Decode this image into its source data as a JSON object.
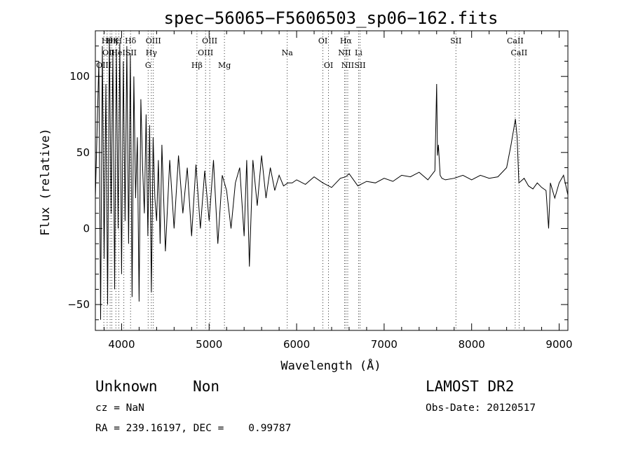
{
  "chart_data": {
    "type": "line",
    "title": "spec−56065−F5606503_sp06−162.fits",
    "xlabel": "Wavelength (Å)",
    "ylabel": "Flux (relative)",
    "xlim": [
      3700,
      9100
    ],
    "ylim": [
      -67,
      130
    ],
    "x_ticks": [
      4000,
      5000,
      6000,
      7000,
      8000,
      9000
    ],
    "x_tick_labels": [
      "4000",
      "5000",
      "6000",
      "7000",
      "8000",
      "9000"
    ],
    "y_ticks": [
      -50,
      0,
      50,
      100
    ],
    "y_tick_labels": [
      "−50",
      "0",
      "50",
      "100"
    ],
    "x_minor_step": 200,
    "y_minor_step": 10,
    "grid": false,
    "series": [
      {
        "color": "#000000",
        "x": [
          3700,
          3740,
          3760,
          3780,
          3800,
          3820,
          3840,
          3860,
          3880,
          3900,
          3920,
          3940,
          3960,
          3980,
          4000,
          4020,
          4040,
          4060,
          4080,
          4100,
          4120,
          4140,
          4160,
          4180,
          4200,
          4220,
          4240,
          4260,
          4280,
          4300,
          4320,
          4340,
          4360,
          4380,
          4400,
          4420,
          4440,
          4460,
          4480,
          4500,
          4550,
          4600,
          4650,
          4700,
          4750,
          4800,
          4850,
          4900,
          4950,
          5000,
          5050,
          5100,
          5150,
          5200,
          5250,
          5300,
          5350,
          5400,
          5430,
          5460,
          5500,
          5550,
          5600,
          5650,
          5700,
          5750,
          5800,
          5850,
          5900,
          5950,
          6000,
          6100,
          6200,
          6300,
          6400,
          6500,
          6560,
          6600,
          6700,
          6800,
          6900,
          7000,
          7100,
          7200,
          7300,
          7400,
          7500,
          7580,
          7600,
          7610,
          7620,
          7640,
          7660,
          7700,
          7800,
          7900,
          8000,
          8100,
          8200,
          8300,
          8400,
          8450,
          8480,
          8500,
          8520,
          8540,
          8560,
          8600,
          8650,
          8700,
          8750,
          8800,
          8850,
          8880,
          8900,
          8950,
          9000,
          9050,
          9100
        ],
        "values": [
          20,
          110,
          -60,
          120,
          -20,
          95,
          -50,
          125,
          10,
          115,
          -40,
          118,
          0,
          122,
          -30,
          110,
          5,
          120,
          -10,
          115,
          -45,
          100,
          20,
          60,
          -48,
          85,
          40,
          10,
          75,
          -5,
          68,
          -42,
          60,
          20,
          5,
          45,
          -10,
          55,
          20,
          -15,
          45,
          0,
          48,
          10,
          40,
          -5,
          42,
          0,
          38,
          5,
          45,
          -10,
          35,
          25,
          0,
          30,
          40,
          -5,
          45,
          -25,
          45,
          15,
          48,
          20,
          40,
          25,
          35,
          28,
          30,
          30,
          32,
          29,
          34,
          30,
          27,
          33,
          34,
          36,
          28,
          31,
          30,
          33,
          31,
          35,
          34,
          37,
          32,
          38,
          95,
          48,
          55,
          35,
          33,
          32,
          33,
          35,
          32,
          35,
          33,
          34,
          40,
          55,
          65,
          72,
          60,
          30,
          31,
          33,
          28,
          26,
          30,
          27,
          25,
          0,
          30,
          20,
          30,
          35,
          22
        ]
      }
    ],
    "lines": [
      {
        "x": 3797,
        "row": 2,
        "label": "OIII"
      },
      {
        "x": 3835,
        "row": 0,
        "label": "Hθ"
      },
      {
        "x": 3869,
        "row": 1,
        "label": "OIII"
      },
      {
        "x": 3889,
        "row": 0,
        "label": "Hη"
      },
      {
        "x": 3934,
        "row": 0,
        "label": "K"
      },
      {
        "x": 3968,
        "row": 0,
        "label": "H"
      },
      {
        "x": 4026,
        "row": 1,
        "label": "HeISII"
      },
      {
        "x": 4102,
        "row": 0,
        "label": "Hδ"
      },
      {
        "x": 4303,
        "row": 2,
        "label": "G"
      },
      {
        "x": 4340,
        "row": 1,
        "label": "Hγ"
      },
      {
        "x": 4363,
        "row": 0,
        "label": "OIII"
      },
      {
        "x": 4861,
        "row": 2,
        "label": "Hβ"
      },
      {
        "x": 4959,
        "row": 1,
        "label": "OIII"
      },
      {
        "x": 5007,
        "row": 0,
        "label": "OIII"
      },
      {
        "x": 5175,
        "row": 2,
        "label": "Mg"
      },
      {
        "x": 5893,
        "row": 1,
        "label": "Na"
      },
      {
        "x": 6300,
        "row": 0,
        "label": "OI"
      },
      {
        "x": 6364,
        "row": 2,
        "label": "OI"
      },
      {
        "x": 6548,
        "row": 1,
        "label": "NII"
      },
      {
        "x": 6563,
        "row": 0,
        "label": "Hα"
      },
      {
        "x": 6584,
        "row": 2,
        "label": "NII"
      },
      {
        "x": 6708,
        "row": 1,
        "label": "Li"
      },
      {
        "x": 6724,
        "row": 2,
        "label": "SII"
      },
      {
        "x": 7820,
        "row": 0,
        "label": "SII"
      },
      {
        "x": 8498,
        "row": 0,
        "label": "CaII"
      },
      {
        "x": 8542,
        "row": 1,
        "label": "CaII"
      }
    ]
  },
  "info": {
    "class_text": "Unknown    Non",
    "survey_text": "LAMOST DR2",
    "cz_text": "cz = NaN",
    "obs_date_text": "Obs-Date: 20120517",
    "radec_text": "RA = 239.16197, DEC =    0.99787"
  }
}
